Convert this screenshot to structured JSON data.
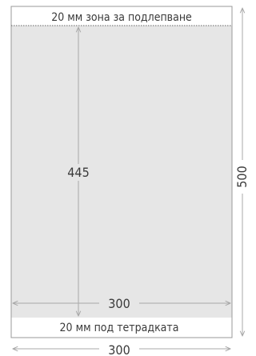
{
  "labels": {
    "top_zone": "20 мм зона за подлепване",
    "bottom_zone": "20 мм под тетрадката",
    "inner_height": "445",
    "inner_width": "300",
    "outer_width": "300",
    "outer_height": "500"
  },
  "colors": {
    "sheet_fill": "#e6e6e6",
    "sheet_border": "#9a9a9a",
    "arrow": "#a8a8a8",
    "text": "#3a3a3a"
  }
}
